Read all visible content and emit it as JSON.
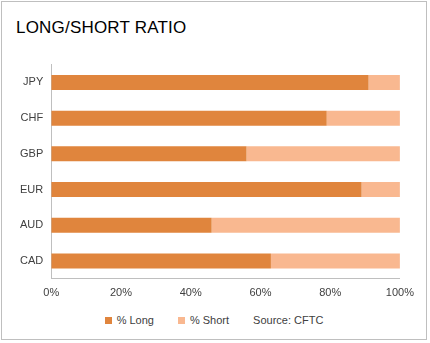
{
  "chart_data": {
    "type": "bar",
    "title": "LONG/SHORT RATIO",
    "orientation": "horizontal",
    "stacked": true,
    "categories": [
      "JPY",
      "CHF",
      "GBP",
      "EUR",
      "AUD",
      "CAD"
    ],
    "series": [
      {
        "name": "% Long",
        "color": "#e0853d",
        "values": [
          91,
          79,
          56,
          89,
          46,
          63
        ]
      },
      {
        "name": "% Short",
        "color": "#f9b890",
        "values": [
          9,
          21,
          44,
          11,
          54,
          37
        ]
      }
    ],
    "xlim": [
      0,
      100
    ],
    "xticks": [
      {
        "value": 0,
        "label": "0%"
      },
      {
        "value": 20,
        "label": "20%"
      },
      {
        "value": 40,
        "label": "40%"
      },
      {
        "value": 60,
        "label": "60%"
      },
      {
        "value": 80,
        "label": "80%"
      },
      {
        "value": 100,
        "label": "100%"
      }
    ],
    "grid": false,
    "legend": "bottom",
    "annotations": [
      "Source: CFTC"
    ]
  }
}
